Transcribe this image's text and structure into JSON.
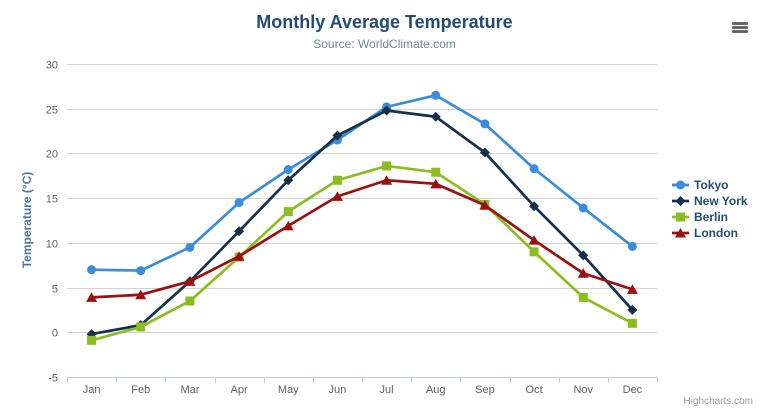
{
  "header": {
    "title": "Monthly Average Temperature",
    "subtitle": "Source: WorldClimate.com",
    "export_menu_icon": "hamburger-icon"
  },
  "credits": "Highcharts.com",
  "chart_data": {
    "type": "line",
    "title": "Monthly Average Temperature",
    "subtitle": "Source: WorldClimate.com",
    "categories": [
      "Jan",
      "Feb",
      "Mar",
      "Apr",
      "May",
      "Jun",
      "Jul",
      "Aug",
      "Sep",
      "Oct",
      "Nov",
      "Dec"
    ],
    "xlabel": "",
    "ylabel": "Temperature (°C)",
    "ylim": [
      -5,
      30
    ],
    "ytick_interval": 5,
    "grid": true,
    "legend_position": "right",
    "colors": {
      "grid": "#d2d2d2",
      "axis_line": "#c0d0e0",
      "axis_text": "#606060"
    },
    "series": [
      {
        "name": "Tokyo",
        "color": "#3c8dd9",
        "marker": "circle",
        "values": [
          7.0,
          6.9,
          9.5,
          14.5,
          18.2,
          21.5,
          25.2,
          26.5,
          23.3,
          18.3,
          13.9,
          9.6
        ]
      },
      {
        "name": "New York",
        "color": "#16304a",
        "marker": "diamond",
        "values": [
          -0.2,
          0.8,
          5.7,
          11.3,
          17.0,
          22.0,
          24.8,
          24.1,
          20.1,
          14.1,
          8.6,
          2.5
        ]
      },
      {
        "name": "Berlin",
        "color": "#8bbc21",
        "marker": "square",
        "values": [
          -0.9,
          0.6,
          3.5,
          8.4,
          13.5,
          17.0,
          18.6,
          17.9,
          14.3,
          9.0,
          3.9,
          1.0
        ]
      },
      {
        "name": "London",
        "color": "#9a1010",
        "marker": "triangle",
        "values": [
          3.9,
          4.2,
          5.7,
          8.5,
          11.9,
          15.2,
          17.0,
          16.6,
          14.2,
          10.3,
          6.6,
          4.8
        ]
      }
    ]
  }
}
